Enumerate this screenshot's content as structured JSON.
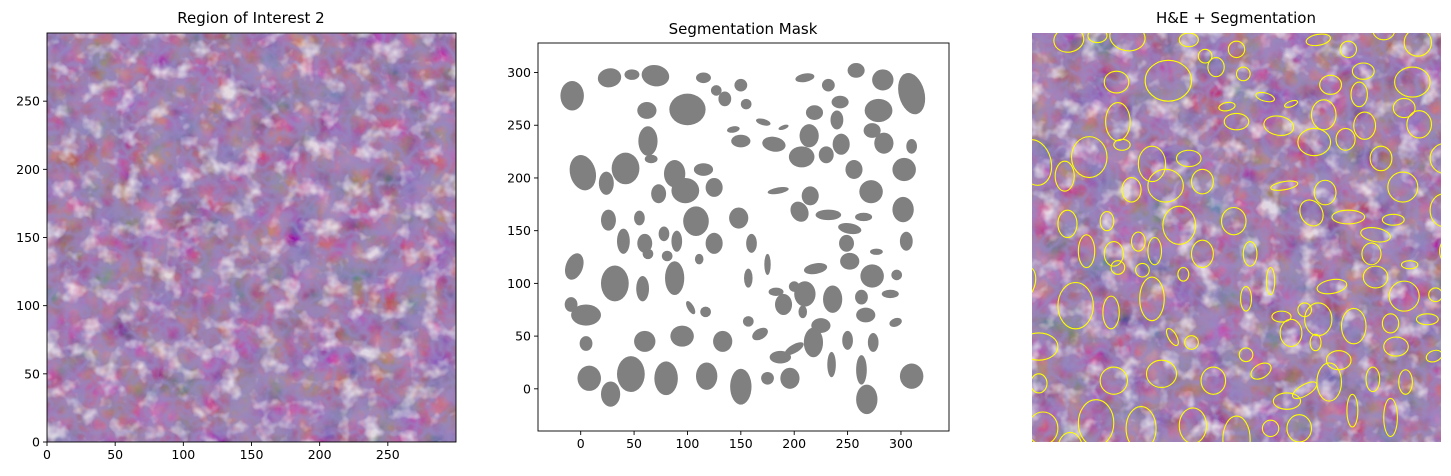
{
  "figure": {
    "background": "#ffffff"
  },
  "chart_data": [
    {
      "type": "heatmap",
      "title": "Region of Interest 2",
      "xlabel": "",
      "ylabel": "",
      "xlim": [
        0,
        300
      ],
      "ylim": [
        0,
        300
      ],
      "origin": "lower",
      "xticks": [
        0,
        50,
        100,
        150,
        200,
        250
      ],
      "yticks": [
        0,
        50,
        100,
        150,
        200,
        250
      ],
      "image": "H&E stained tissue patch",
      "palette": {
        "stroma": "#b977a6",
        "nucleus": "#4c3f86",
        "lumen": "#ddd2d6"
      },
      "grid": false
    },
    {
      "type": "scatter",
      "title": "Segmentation Mask",
      "xlabel": "",
      "ylabel": "",
      "xlim": [
        -40,
        345
      ],
      "ylim": [
        -40,
        328
      ],
      "xticks": [
        0,
        50,
        100,
        150,
        200,
        250,
        300
      ],
      "yticks": [
        0,
        50,
        100,
        150,
        200,
        250,
        300
      ],
      "fill_color": "#808080",
      "grid": false,
      "points": [
        {
          "x": -8,
          "y": 278,
          "rx": 11,
          "ry": 14,
          "rot": 0
        },
        {
          "x": 27,
          "y": 295,
          "rx": 11,
          "ry": 9,
          "rot": 10
        },
        {
          "x": 48,
          "y": 298,
          "rx": 7,
          "ry": 5,
          "rot": 0
        },
        {
          "x": 70,
          "y": 297,
          "rx": 13,
          "ry": 10,
          "rot": -10
        },
        {
          "x": 115,
          "y": 295,
          "rx": 7,
          "ry": 5,
          "rot": 0
        },
        {
          "x": 150,
          "y": 288,
          "rx": 6,
          "ry": 6,
          "rot": 0
        },
        {
          "x": 210,
          "y": 295,
          "rx": 9,
          "ry": 4,
          "rot": 10
        },
        {
          "x": 232,
          "y": 288,
          "rx": 6,
          "ry": 6,
          "rot": 0
        },
        {
          "x": 258,
          "y": 302,
          "rx": 8,
          "ry": 7,
          "rot": 0
        },
        {
          "x": 283,
          "y": 293,
          "rx": 10,
          "ry": 10,
          "rot": 0
        },
        {
          "x": 310,
          "y": 280,
          "rx": 12,
          "ry": 20,
          "rot": 15
        },
        {
          "x": 127,
          "y": 283,
          "rx": 5,
          "ry": 5,
          "rot": 0
        },
        {
          "x": 62,
          "y": 264,
          "rx": 9,
          "ry": 8,
          "rot": 0
        },
        {
          "x": 100,
          "y": 265,
          "rx": 17,
          "ry": 15,
          "rot": 0
        },
        {
          "x": 135,
          "y": 275,
          "rx": 6,
          "ry": 7,
          "rot": 0
        },
        {
          "x": 155,
          "y": 270,
          "rx": 5,
          "ry": 5,
          "rot": 0
        },
        {
          "x": 243,
          "y": 272,
          "rx": 8,
          "ry": 6,
          "rot": 0
        },
        {
          "x": 279,
          "y": 264,
          "rx": 13,
          "ry": 11,
          "rot": 0
        },
        {
          "x": 219,
          "y": 262,
          "rx": 8,
          "ry": 7,
          "rot": 0
        },
        {
          "x": 171,
          "y": 253,
          "rx": 7,
          "ry": 3,
          "rot": -15
        },
        {
          "x": 190,
          "y": 248,
          "rx": 5,
          "ry": 2,
          "rot": 20
        },
        {
          "x": 143,
          "y": 246,
          "rx": 6,
          "ry": 3,
          "rot": 10
        },
        {
          "x": 240,
          "y": 255,
          "rx": 6,
          "ry": 9,
          "rot": 0
        },
        {
          "x": 273,
          "y": 245,
          "rx": 8,
          "ry": 7,
          "rot": 0
        },
        {
          "x": 214,
          "y": 240,
          "rx": 9,
          "ry": 11,
          "rot": 0
        },
        {
          "x": 63,
          "y": 235,
          "rx": 9,
          "ry": 14,
          "rot": 0
        },
        {
          "x": 150,
          "y": 235,
          "rx": 9,
          "ry": 6,
          "rot": 0
        },
        {
          "x": 181,
          "y": 232,
          "rx": 11,
          "ry": 7,
          "rot": -10
        },
        {
          "x": 244,
          "y": 232,
          "rx": 8,
          "ry": 10,
          "rot": 0
        },
        {
          "x": 284,
          "y": 233,
          "rx": 9,
          "ry": 10,
          "rot": 0
        },
        {
          "x": 310,
          "y": 230,
          "rx": 5,
          "ry": 7,
          "rot": 0
        },
        {
          "x": 207,
          "y": 220,
          "rx": 12,
          "ry": 10,
          "rot": 0
        },
        {
          "x": 230,
          "y": 222,
          "rx": 7,
          "ry": 8,
          "rot": 0
        },
        {
          "x": 66,
          "y": 218,
          "rx": 6,
          "ry": 4,
          "rot": 0
        },
        {
          "x": 2,
          "y": 205,
          "rx": 12,
          "ry": 17,
          "rot": 15
        },
        {
          "x": 42,
          "y": 209,
          "rx": 13,
          "ry": 15,
          "rot": 0
        },
        {
          "x": 24,
          "y": 195,
          "rx": 7,
          "ry": 11,
          "rot": 0
        },
        {
          "x": 88,
          "y": 204,
          "rx": 10,
          "ry": 13,
          "rot": 0
        },
        {
          "x": 115,
          "y": 208,
          "rx": 9,
          "ry": 6,
          "rot": 0
        },
        {
          "x": 256,
          "y": 208,
          "rx": 8,
          "ry": 9,
          "rot": 0
        },
        {
          "x": 303,
          "y": 208,
          "rx": 11,
          "ry": 11,
          "rot": 0
        },
        {
          "x": 272,
          "y": 187,
          "rx": 11,
          "ry": 11,
          "rot": 0
        },
        {
          "x": 73,
          "y": 185,
          "rx": 7,
          "ry": 9,
          "rot": 0
        },
        {
          "x": 98,
          "y": 188,
          "rx": 13,
          "ry": 12,
          "rot": 0
        },
        {
          "x": 125,
          "y": 191,
          "rx": 8,
          "ry": 9,
          "rot": 0
        },
        {
          "x": 185,
          "y": 188,
          "rx": 10,
          "ry": 3,
          "rot": 10
        },
        {
          "x": 215,
          "y": 183,
          "rx": 8,
          "ry": 9,
          "rot": 0
        },
        {
          "x": 26,
          "y": 160,
          "rx": 7,
          "ry": 10,
          "rot": 0
        },
        {
          "x": 55,
          "y": 162,
          "rx": 5,
          "ry": 7,
          "rot": 0
        },
        {
          "x": 108,
          "y": 159,
          "rx": 12,
          "ry": 14,
          "rot": 0
        },
        {
          "x": 148,
          "y": 162,
          "rx": 9,
          "ry": 10,
          "rot": 0
        },
        {
          "x": 205,
          "y": 168,
          "rx": 8,
          "ry": 10,
          "rot": 30
        },
        {
          "x": 232,
          "y": 165,
          "rx": 12,
          "ry": 5,
          "rot": 0
        },
        {
          "x": 265,
          "y": 163,
          "rx": 8,
          "ry": 4,
          "rot": 0
        },
        {
          "x": 302,
          "y": 170,
          "rx": 10,
          "ry": 12,
          "rot": 0
        },
        {
          "x": 78,
          "y": 147,
          "rx": 5,
          "ry": 7,
          "rot": 0
        },
        {
          "x": 252,
          "y": 152,
          "rx": 11,
          "ry": 5,
          "rot": -10
        },
        {
          "x": 40,
          "y": 140,
          "rx": 6,
          "ry": 12,
          "rot": 0
        },
        {
          "x": 60,
          "y": 138,
          "rx": 7,
          "ry": 9,
          "rot": 0
        },
        {
          "x": 90,
          "y": 140,
          "rx": 5,
          "ry": 10,
          "rot": 0
        },
        {
          "x": 125,
          "y": 138,
          "rx": 8,
          "ry": 10,
          "rot": 0
        },
        {
          "x": 160,
          "y": 138,
          "rx": 5,
          "ry": 9,
          "rot": 0
        },
        {
          "x": 249,
          "y": 138,
          "rx": 7,
          "ry": 8,
          "rot": 0
        },
        {
          "x": 305,
          "y": 140,
          "rx": 6,
          "ry": 9,
          "rot": 0
        },
        {
          "x": 81,
          "y": 126,
          "rx": 5,
          "ry": 5,
          "rot": 0
        },
        {
          "x": 63,
          "y": 128,
          "rx": 5,
          "ry": 5,
          "rot": 0
        },
        {
          "x": 111,
          "y": 123,
          "rx": 4,
          "ry": 5,
          "rot": 0
        },
        {
          "x": 277,
          "y": 130,
          "rx": 6,
          "ry": 3,
          "rot": 0
        },
        {
          "x": 252,
          "y": 121,
          "rx": 9,
          "ry": 8,
          "rot": 0
        },
        {
          "x": -6,
          "y": 116,
          "rx": 8,
          "ry": 13,
          "rot": -20
        },
        {
          "x": 175,
          "y": 118,
          "rx": 3,
          "ry": 10,
          "rot": 0
        },
        {
          "x": 220,
          "y": 114,
          "rx": 11,
          "ry": 5,
          "rot": 10
        },
        {
          "x": 32,
          "y": 100,
          "rx": 13,
          "ry": 17,
          "rot": 0
        },
        {
          "x": 58,
          "y": 95,
          "rx": 6,
          "ry": 12,
          "rot": 0
        },
        {
          "x": 88,
          "y": 105,
          "rx": 9,
          "ry": 16,
          "rot": 0
        },
        {
          "x": 157,
          "y": 105,
          "rx": 4,
          "ry": 9,
          "rot": 0
        },
        {
          "x": 273,
          "y": 107,
          "rx": 11,
          "ry": 11,
          "rot": 0
        },
        {
          "x": 296,
          "y": 108,
          "rx": 5,
          "ry": 5,
          "rot": 0
        },
        {
          "x": 183,
          "y": 92,
          "rx": 7,
          "ry": 4,
          "rot": 0
        },
        {
          "x": 210,
          "y": 90,
          "rx": 10,
          "ry": 12,
          "rot": 0
        },
        {
          "x": 290,
          "y": 90,
          "rx": 8,
          "ry": 4,
          "rot": 0
        },
        {
          "x": 200,
          "y": 97,
          "rx": 5,
          "ry": 5,
          "rot": 0
        },
        {
          "x": 236,
          "y": 85,
          "rx": 9,
          "ry": 13,
          "rot": 0
        },
        {
          "x": -9,
          "y": 80,
          "rx": 6,
          "ry": 7,
          "rot": 0
        },
        {
          "x": 263,
          "y": 87,
          "rx": 6,
          "ry": 7,
          "rot": 0
        },
        {
          "x": 190,
          "y": 80,
          "rx": 8,
          "ry": 10,
          "rot": 0
        },
        {
          "x": 267,
          "y": 70,
          "rx": 9,
          "ry": 7,
          "rot": 0
        },
        {
          "x": 117,
          "y": 73,
          "rx": 5,
          "ry": 5,
          "rot": 0
        },
        {
          "x": 103,
          "y": 77,
          "rx": 3,
          "ry": 7,
          "rot": 30
        },
        {
          "x": 208,
          "y": 73,
          "rx": 4,
          "ry": 6,
          "rot": 0
        },
        {
          "x": 5,
          "y": 70,
          "rx": 14,
          "ry": 10,
          "rot": 0
        },
        {
          "x": 295,
          "y": 63,
          "rx": 6,
          "ry": 4,
          "rot": 20
        },
        {
          "x": 157,
          "y": 64,
          "rx": 5,
          "ry": 5,
          "rot": 0
        },
        {
          "x": 225,
          "y": 60,
          "rx": 9,
          "ry": 7,
          "rot": 0
        },
        {
          "x": 168,
          "y": 52,
          "rx": 8,
          "ry": 5,
          "rot": 30
        },
        {
          "x": 5,
          "y": 43,
          "rx": 6,
          "ry": 7,
          "rot": 0
        },
        {
          "x": 60,
          "y": 45,
          "rx": 10,
          "ry": 10,
          "rot": 0
        },
        {
          "x": 95,
          "y": 50,
          "rx": 11,
          "ry": 10,
          "rot": 0
        },
        {
          "x": 133,
          "y": 45,
          "rx": 9,
          "ry": 10,
          "rot": 0
        },
        {
          "x": 218,
          "y": 44,
          "rx": 9,
          "ry": 14,
          "rot": 0
        },
        {
          "x": 250,
          "y": 46,
          "rx": 5,
          "ry": 9,
          "rot": 0
        },
        {
          "x": 274,
          "y": 44,
          "rx": 5,
          "ry": 9,
          "rot": 0
        },
        {
          "x": 187,
          "y": 30,
          "rx": 10,
          "ry": 6,
          "rot": 0
        },
        {
          "x": 200,
          "y": 38,
          "rx": 10,
          "ry": 4,
          "rot": 30
        },
        {
          "x": 235,
          "y": 23,
          "rx": 4,
          "ry": 12,
          "rot": 0
        },
        {
          "x": 263,
          "y": 18,
          "rx": 5,
          "ry": 14,
          "rot": 0
        },
        {
          "x": 8,
          "y": 10,
          "rx": 11,
          "ry": 12,
          "rot": 0
        },
        {
          "x": 47,
          "y": 14,
          "rx": 13,
          "ry": 17,
          "rot": 0
        },
        {
          "x": 80,
          "y": 10,
          "rx": 11,
          "ry": 16,
          "rot": 0
        },
        {
          "x": 118,
          "y": 12,
          "rx": 10,
          "ry": 13,
          "rot": 0
        },
        {
          "x": 150,
          "y": 2,
          "rx": 10,
          "ry": 17,
          "rot": 0
        },
        {
          "x": 175,
          "y": 10,
          "rx": 6,
          "ry": 6,
          "rot": 0
        },
        {
          "x": 196,
          "y": 10,
          "rx": 9,
          "ry": 10,
          "rot": 0
        },
        {
          "x": 310,
          "y": 12,
          "rx": 11,
          "ry": 12,
          "rot": 0
        },
        {
          "x": 28,
          "y": -5,
          "rx": 9,
          "ry": 12,
          "rot": 0
        },
        {
          "x": 268,
          "y": -10,
          "rx": 10,
          "ry": 14,
          "rot": 0
        }
      ]
    },
    {
      "type": "heatmap",
      "title": "H&E + Segmentation",
      "xlabel": "",
      "ylabel": "",
      "axis": "off",
      "image": "H&E stained tissue patch with segmentation contours",
      "contour_color": "#ffff00",
      "palette": {
        "stroma": "#b977a6",
        "nucleus": "#4c3f86",
        "lumen": "#ddd2d6"
      },
      "grid": false
    }
  ]
}
